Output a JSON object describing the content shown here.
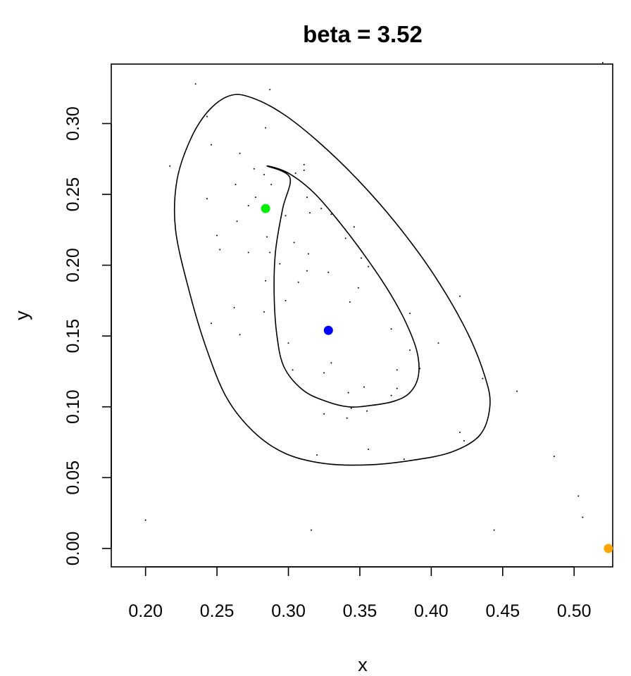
{
  "chart_data": {
    "type": "scatter",
    "title": "beta = 3.52",
    "xlabel": "x",
    "ylabel": "y",
    "xlim": [
      0.176,
      0.527
    ],
    "ylim": [
      -0.013,
      0.342
    ],
    "grid": false,
    "x_ticks": [
      "0.20",
      "0.25",
      "0.30",
      "0.35",
      "0.40",
      "0.45",
      "0.50"
    ],
    "y_ticks": [
      "0.00",
      "0.05",
      "0.10",
      "0.15",
      "0.20",
      "0.25",
      "0.30"
    ],
    "contours": [
      {
        "points": [
          [
            0.285,
            0.27
          ],
          [
            0.3,
            0.265
          ],
          [
            0.318,
            0.251
          ],
          [
            0.336,
            0.23
          ],
          [
            0.354,
            0.206
          ],
          [
            0.37,
            0.182
          ],
          [
            0.382,
            0.16
          ],
          [
            0.39,
            0.139
          ],
          [
            0.391,
            0.122
          ],
          [
            0.385,
            0.11
          ],
          [
            0.374,
            0.104
          ],
          [
            0.358,
            0.101
          ],
          [
            0.342,
            0.1
          ],
          [
            0.326,
            0.104
          ],
          [
            0.31,
            0.112
          ],
          [
            0.297,
            0.128
          ],
          [
            0.292,
            0.15
          ],
          [
            0.29,
            0.18
          ],
          [
            0.291,
            0.21
          ],
          [
            0.296,
            0.24
          ],
          [
            0.301,
            0.262
          ],
          [
            0.285,
            0.27
          ]
        ]
      },
      {
        "points": [
          [
            0.26,
            0.32
          ],
          [
            0.275,
            0.318
          ],
          [
            0.296,
            0.307
          ],
          [
            0.32,
            0.288
          ],
          [
            0.347,
            0.262
          ],
          [
            0.375,
            0.23
          ],
          [
            0.402,
            0.193
          ],
          [
            0.425,
            0.153
          ],
          [
            0.438,
            0.12
          ],
          [
            0.441,
            0.1
          ],
          [
            0.434,
            0.08
          ],
          [
            0.414,
            0.068
          ],
          [
            0.385,
            0.062
          ],
          [
            0.355,
            0.059
          ],
          [
            0.325,
            0.06
          ],
          [
            0.298,
            0.067
          ],
          [
            0.276,
            0.082
          ],
          [
            0.257,
            0.106
          ],
          [
            0.243,
            0.14
          ],
          [
            0.231,
            0.18
          ],
          [
            0.221,
            0.225
          ],
          [
            0.222,
            0.26
          ],
          [
            0.232,
            0.29
          ],
          [
            0.245,
            0.31
          ],
          [
            0.26,
            0.32
          ]
        ]
      }
    ],
    "scatter_points": [
      [
        0.235,
        0.328
      ],
      [
        0.287,
        0.324
      ],
      [
        0.52,
        0.343
      ],
      [
        0.276,
        0.268
      ],
      [
        0.284,
        0.297
      ],
      [
        0.266,
        0.279
      ],
      [
        0.243,
        0.305
      ],
      [
        0.217,
        0.27
      ],
      [
        0.246,
        0.285
      ],
      [
        0.311,
        0.271
      ],
      [
        0.311,
        0.267
      ],
      [
        0.349,
        0.26
      ],
      [
        0.283,
        0.264
      ],
      [
        0.305,
        0.265
      ],
      [
        0.263,
        0.257
      ],
      [
        0.288,
        0.257
      ],
      [
        0.277,
        0.248
      ],
      [
        0.313,
        0.248
      ],
      [
        0.243,
        0.247
      ],
      [
        0.323,
        0.24
      ],
      [
        0.272,
        0.242
      ],
      [
        0.315,
        0.237
      ],
      [
        0.33,
        0.236
      ],
      [
        0.298,
        0.235
      ],
      [
        0.264,
        0.231
      ],
      [
        0.346,
        0.227
      ],
      [
        0.25,
        0.221
      ],
      [
        0.285,
        0.22
      ],
      [
        0.304,
        0.216
      ],
      [
        0.34,
        0.219
      ],
      [
        0.252,
        0.211
      ],
      [
        0.272,
        0.209
      ],
      [
        0.287,
        0.209
      ],
      [
        0.314,
        0.208
      ],
      [
        0.351,
        0.205
      ],
      [
        0.294,
        0.201
      ],
      [
        0.356,
        0.199
      ],
      [
        0.313,
        0.196
      ],
      [
        0.328,
        0.195
      ],
      [
        0.284,
        0.189
      ],
      [
        0.307,
        0.188
      ],
      [
        0.349,
        0.184
      ],
      [
        0.298,
        0.175
      ],
      [
        0.343,
        0.174
      ],
      [
        0.262,
        0.17
      ],
      [
        0.283,
        0.167
      ],
      [
        0.385,
        0.166
      ],
      [
        0.372,
        0.155
      ],
      [
        0.266,
        0.151
      ],
      [
        0.3,
        0.145
      ],
      [
        0.385,
        0.14
      ],
      [
        0.33,
        0.131
      ],
      [
        0.303,
        0.126
      ],
      [
        0.376,
        0.126
      ],
      [
        0.325,
        0.124
      ],
      [
        0.246,
        0.159
      ],
      [
        0.353,
        0.114
      ],
      [
        0.376,
        0.113
      ],
      [
        0.342,
        0.11
      ],
      [
        0.372,
        0.108
      ],
      [
        0.42,
        0.178
      ],
      [
        0.405,
        0.145
      ],
      [
        0.392,
        0.127
      ],
      [
        0.46,
        0.111
      ],
      [
        0.436,
        0.12
      ],
      [
        0.344,
        0.099
      ],
      [
        0.355,
        0.097
      ],
      [
        0.325,
        0.095
      ],
      [
        0.341,
        0.092
      ],
      [
        0.42,
        0.082
      ],
      [
        0.423,
        0.076
      ],
      [
        0.356,
        0.07
      ],
      [
        0.32,
        0.066
      ],
      [
        0.381,
        0.063
      ],
      [
        0.486,
        0.065
      ],
      [
        0.503,
        0.037
      ],
      [
        0.506,
        0.022
      ],
      [
        0.2,
        0.02
      ],
      [
        0.316,
        0.013
      ],
      [
        0.444,
        0.013
      ]
    ],
    "highlight_points": [
      {
        "x": 0.284,
        "y": 0.24,
        "color": "#00ee00"
      },
      {
        "x": 0.328,
        "y": 0.154,
        "color": "#0000ff"
      },
      {
        "x": 0.524,
        "y": 0.0,
        "color": "#ffa500"
      }
    ]
  }
}
